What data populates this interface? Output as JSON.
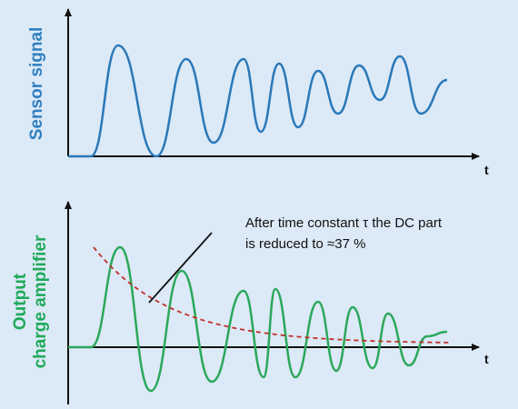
{
  "top_panel": {
    "y_label": "Sensor signal",
    "x_label": "t"
  },
  "bottom_panel": {
    "y_label_line1": "Output",
    "y_label_line2": "charge amplifier",
    "x_label": "t",
    "annotation_line1": "After time constant τ the DC part",
    "annotation_line2": "is reduced to ≈37 %"
  }
}
